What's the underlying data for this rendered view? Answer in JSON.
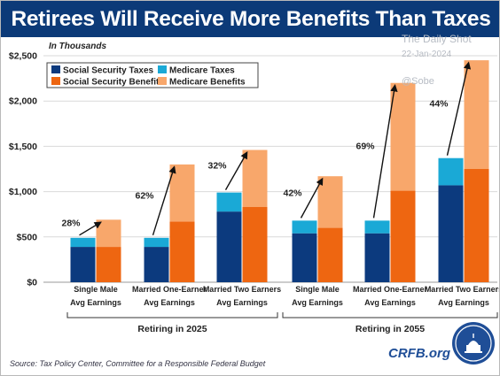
{
  "title": "Retirees Will Receive More Benefits Than Taxes Paid",
  "units_note": "In Thousands",
  "watermark": {
    "name": "The Daily Shot",
    "date": "22-Jan-2024",
    "handle": "@Sobe"
  },
  "source": "Source: Tax Policy Center, Committee for a Responsible Federal Budget",
  "brand": "CRFB.org",
  "colors": {
    "social_security_taxes": "#0c3a7e",
    "medicare_taxes": "#1aa9d6",
    "social_security_benefits": "#ee6611",
    "medicare_benefits": "#f8a76b",
    "title_bar": "#0c3a78"
  },
  "chart_data": {
    "type": "bar",
    "stacked": true,
    "ylim": [
      0,
      2500
    ],
    "yticks": [
      "$0",
      "$500",
      "$1,000",
      "$1,500",
      "$2,000",
      "$2,500"
    ],
    "ytick_values": [
      0,
      500,
      1000,
      1500,
      2000,
      2500
    ],
    "grid": true,
    "legend_position": "top-left",
    "legend": [
      "Social Security Taxes",
      "Medicare Taxes",
      "Social Security Benefits",
      "Medicare Benefits"
    ],
    "groups": [
      {
        "label": "Retiring in 2025",
        "categories": [
          {
            "label_lines": [
              "Single Male",
              "Avg Earnings"
            ],
            "ss_taxes": 390,
            "medicare_taxes": 100,
            "ss_benefits": 390,
            "medicare_benefits": 300,
            "pct": "28%"
          },
          {
            "label_lines": [
              "Married One-Earner",
              "Avg Earnings"
            ],
            "ss_taxes": 390,
            "medicare_taxes": 100,
            "ss_benefits": 670,
            "medicare_benefits": 630,
            "pct": "62%"
          },
          {
            "label_lines": [
              "Married Two Earners",
              "Avg Earnings"
            ],
            "ss_taxes": 780,
            "medicare_taxes": 210,
            "ss_benefits": 830,
            "medicare_benefits": 630,
            "pct": "32%"
          }
        ]
      },
      {
        "label": "Retiring in 2055",
        "categories": [
          {
            "label_lines": [
              "Single Male",
              "Avg Earnings"
            ],
            "ss_taxes": 540,
            "medicare_taxes": 140,
            "ss_benefits": 600,
            "medicare_benefits": 570,
            "pct": "42%"
          },
          {
            "label_lines": [
              "Married One-Earner",
              "Avg Earnings"
            ],
            "ss_taxes": 540,
            "medicare_taxes": 140,
            "ss_benefits": 1010,
            "medicare_benefits": 1190,
            "pct": "69%"
          },
          {
            "label_lines": [
              "Married Two Earners",
              "Avg Earnings"
            ],
            "ss_taxes": 1070,
            "medicare_taxes": 300,
            "ss_benefits": 1250,
            "medicare_benefits": 1200,
            "pct": "44%"
          }
        ]
      }
    ]
  }
}
